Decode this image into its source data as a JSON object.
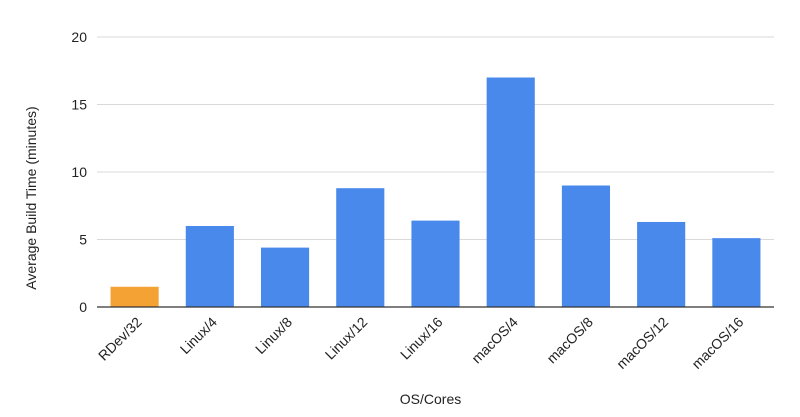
{
  "chart_data": {
    "type": "bar",
    "title": "",
    "xlabel": "OS/Cores",
    "ylabel": "Average Build Time (minutes)",
    "ylim": [
      0,
      20
    ],
    "yticks": [
      0,
      5,
      10,
      15,
      20
    ],
    "grid": true,
    "legend": "none",
    "categories": [
      "RDev/32",
      "Linux/4",
      "Linux/8",
      "Linux/12",
      "Linux/16",
      "macOS/4",
      "macOS/8",
      "macOS/12",
      "macOS/16"
    ],
    "values": [
      1.5,
      6.0,
      4.4,
      8.8,
      6.4,
      17.0,
      9.0,
      6.3,
      5.1
    ],
    "colors": {
      "highlight": "#f4a233",
      "default": "#4a89ec",
      "grid": "#d9d9d9",
      "axis": "#333333"
    },
    "highlight_index": 0
  }
}
